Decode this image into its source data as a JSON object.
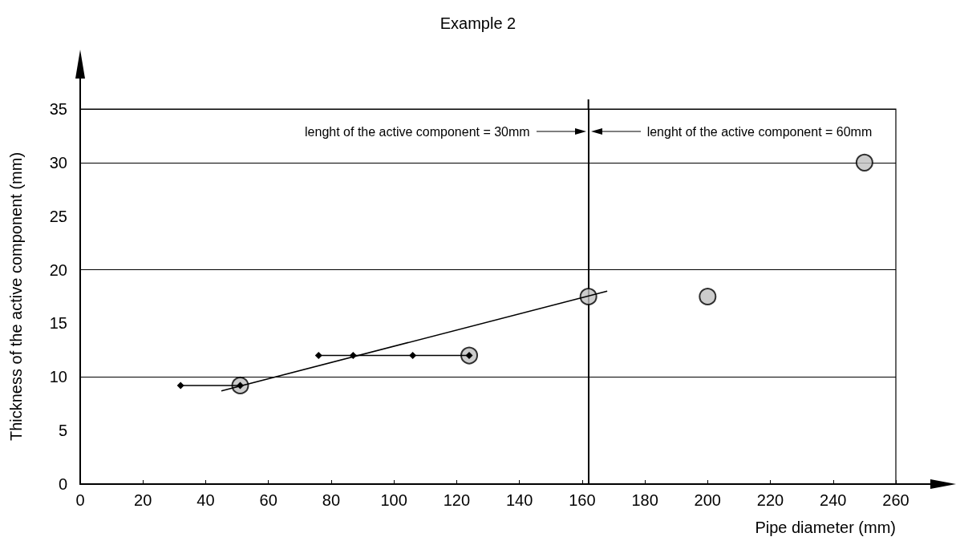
{
  "chart_data": {
    "type": "line",
    "title": "Example 2",
    "xlabel": "Pipe diameter (mm)",
    "ylabel": "Thickness of the active component (mm)",
    "xlim": [
      0,
      260
    ],
    "xticks": [
      0,
      20,
      40,
      60,
      80,
      100,
      120,
      140,
      160,
      180,
      200,
      220,
      240,
      260
    ],
    "ylim": [
      0,
      35
    ],
    "yticks": [
      0,
      5,
      10,
      15,
      20,
      25,
      30,
      35
    ],
    "grid": "y",
    "series": [
      {
        "x": [
          32,
          51
        ],
        "values": [
          9.2,
          9.2
        ],
        "color": "#000000",
        "marker": "diamond"
      },
      {
        "x": [
          76,
          87,
          106,
          124
        ],
        "values": [
          12,
          12,
          12,
          12
        ],
        "color": "#000000",
        "marker": "diamond"
      },
      {
        "x": [
          45,
          168
        ],
        "values": [
          8.7,
          18
        ],
        "color": "#000000",
        "marker": "none"
      },
      {
        "type": "scatter",
        "x": [
          51,
          124,
          162,
          200,
          250
        ],
        "values": [
          9.2,
          12,
          17.5,
          17.5,
          30
        ],
        "color": "#bfbfbf",
        "marker": "circle"
      }
    ],
    "ref_lines": [
      {
        "axis": "x",
        "value": 162,
        "color": "#000000"
      }
    ],
    "annotations": [
      "lenght of the active component = 30mm",
      "lenght of the active component = 60mm"
    ]
  }
}
